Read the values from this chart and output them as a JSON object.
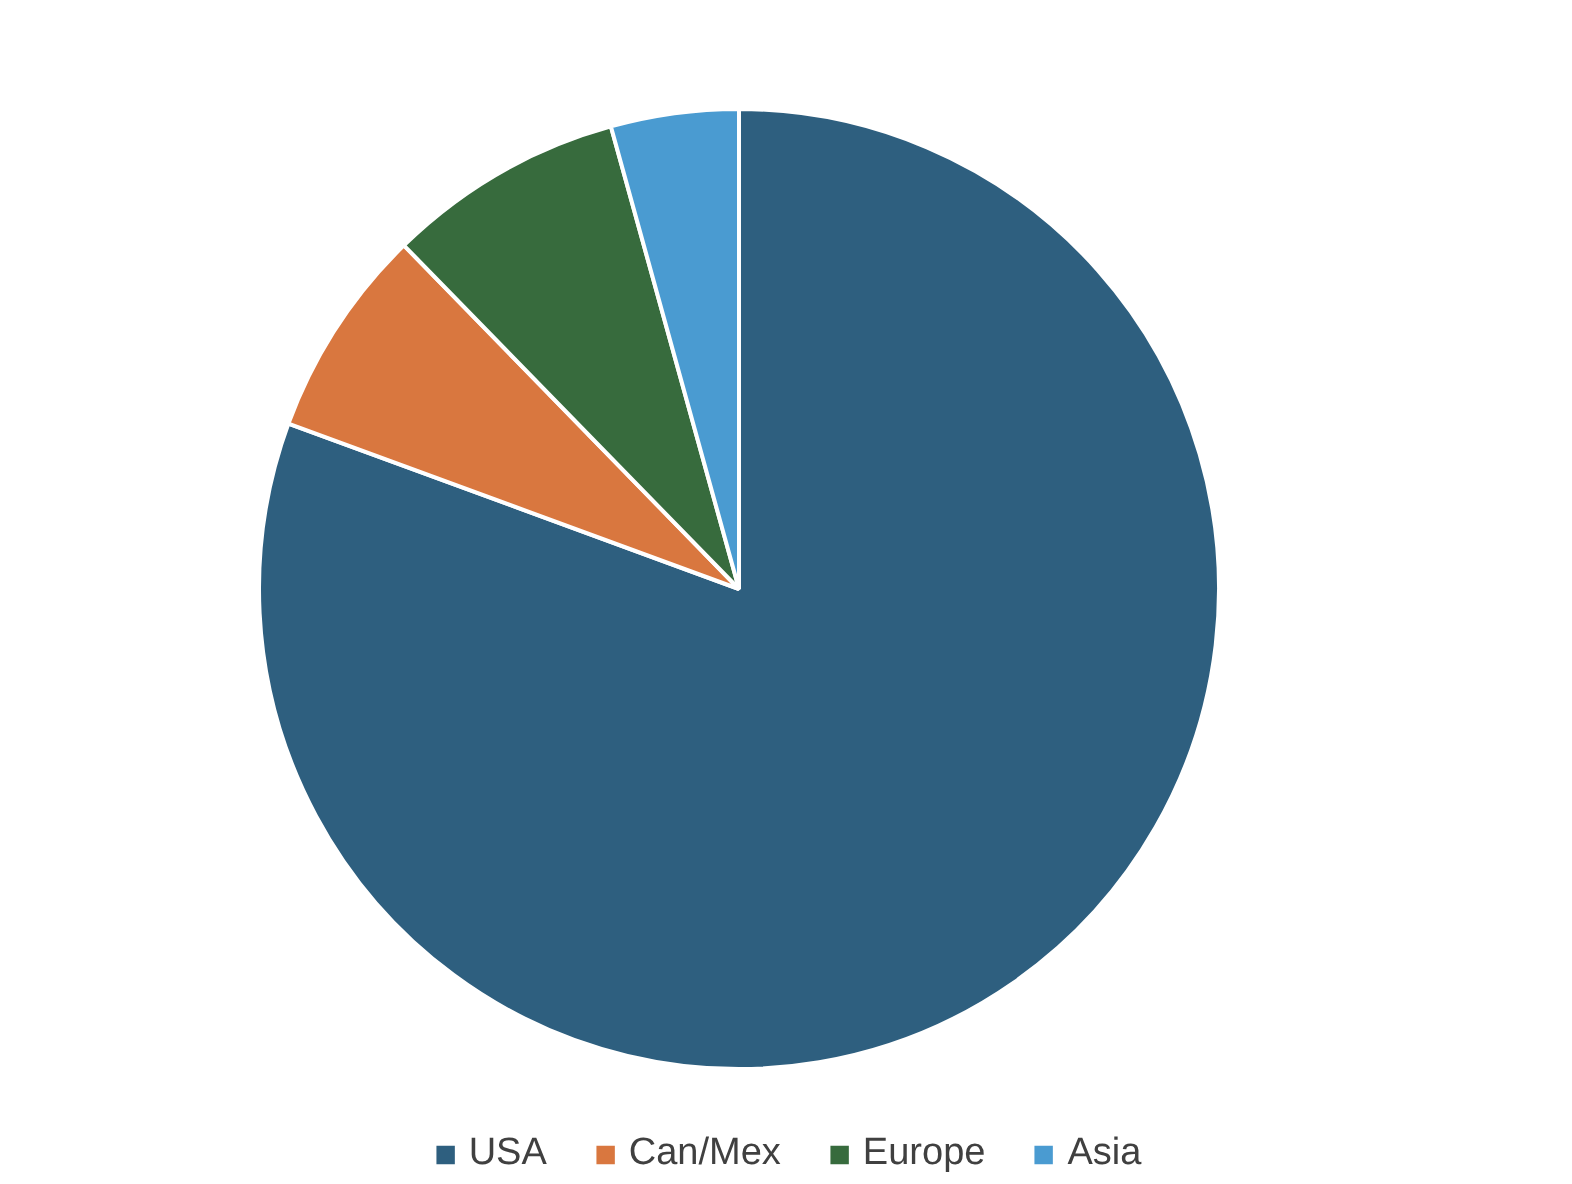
{
  "chart_data": {
    "type": "pie",
    "categories": [
      "USA",
      "Can/Mex",
      "Europe",
      "Asia"
    ],
    "values": [
      80.6,
      7.1,
      8.0,
      4.3
    ],
    "colors": [
      "#2e5f7f",
      "#d9773f",
      "#376b3d",
      "#4a9bd1"
    ],
    "legend": "bottom"
  }
}
